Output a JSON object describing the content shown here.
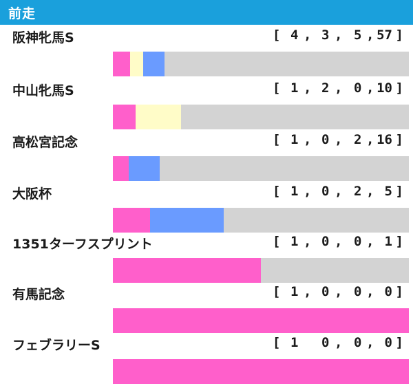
{
  "header": {
    "title": "前走"
  },
  "colors": {
    "header_bg": "#1aa0dc",
    "win": "#ff5fcb",
    "second": "#fffcc8",
    "third": "#6a9bff",
    "out": "#d3d3d3"
  },
  "chart_data": {
    "type": "bar",
    "title": "",
    "stacked": true,
    "orientation": "horizontal",
    "categories": [
      "阪神牝馬S",
      "中山牝馬S",
      "高松宮記念",
      "大阪杯",
      "1351ターフスプリント",
      "有馬記念",
      "フェブラリーS"
    ],
    "series": [
      {
        "key": "first",
        "values": [
          4,
          1,
          1,
          1,
          1,
          1,
          1
        ]
      },
      {
        "key": "second",
        "values": [
          3,
          2,
          0,
          0,
          0,
          0,
          0
        ]
      },
      {
        "key": "third",
        "values": [
          5,
          0,
          2,
          2,
          0,
          0,
          0
        ]
      },
      {
        "key": "out",
        "values": [
          57,
          10,
          16,
          5,
          1,
          0,
          0
        ]
      }
    ],
    "records": [
      {
        "open": "[",
        "v1": "4",
        "s1": ",",
        "v2": "3",
        "s2": ",",
        "v3": "5",
        "s3": ",",
        "v4": "57",
        "close": "]"
      },
      {
        "open": "[",
        "v1": "1",
        "s1": ",",
        "v2": "2",
        "s2": ",",
        "v3": "0",
        "s3": ",",
        "v4": "10",
        "close": "]"
      },
      {
        "open": "[",
        "v1": "1",
        "s1": ",",
        "v2": "0",
        "s2": ",",
        "v3": "2",
        "s3": ",",
        "v4": "16",
        "close": "]"
      },
      {
        "open": "[",
        "v1": "1",
        "s1": ",",
        "v2": "0",
        "s2": ",",
        "v3": "2",
        "s3": ",",
        "v4": "5",
        "close": "]"
      },
      {
        "open": "[",
        "v1": "1",
        "s1": ",",
        "v2": "0",
        "s2": ",",
        "v3": "0",
        "s3": ",",
        "v4": "1",
        "close": "]"
      },
      {
        "open": "[",
        "v1": "1",
        "s1": ",",
        "v2": "0",
        "s2": ",",
        "v3": "0",
        "s3": ",",
        "v4": "0",
        "close": "]"
      },
      {
        "open": "[",
        "v1": "1",
        "s1": "",
        "v2": "0",
        "s2": ",",
        "v3": "0",
        "s3": ",",
        "v4": "0",
        "close": "]"
      }
    ]
  }
}
